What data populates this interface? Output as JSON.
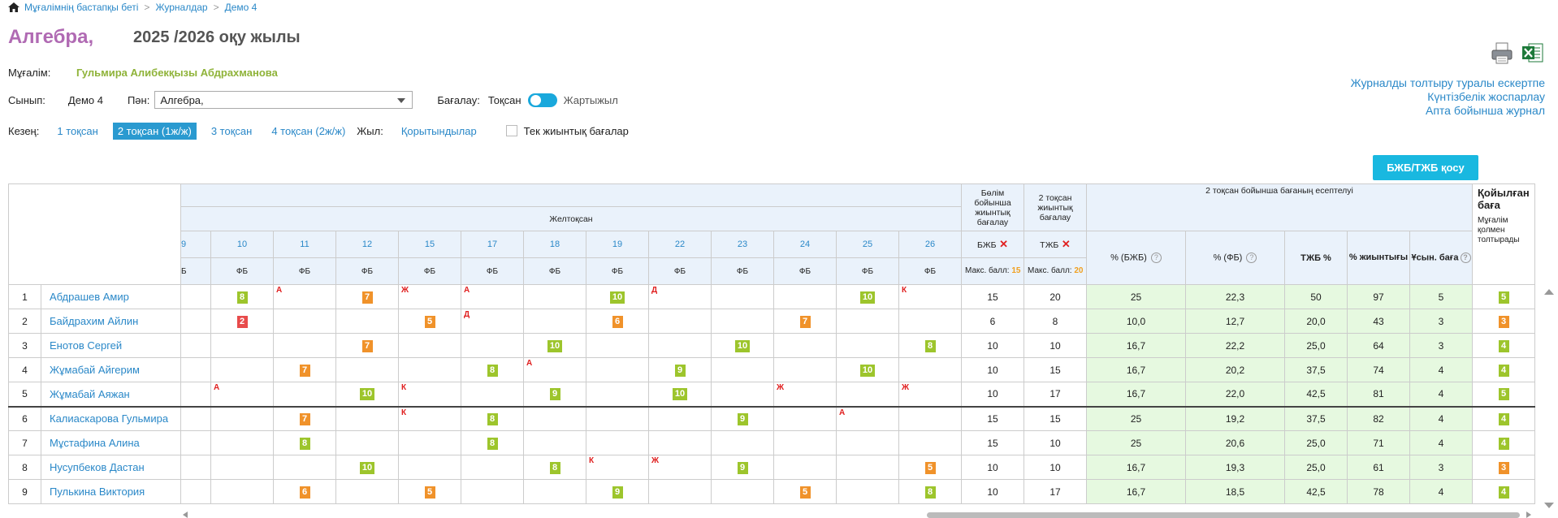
{
  "breadcrumb": [
    "Мұғалімнің бастапқы беті",
    "Журналдар",
    "Демо 4"
  ],
  "subject_title": "Алгебра,",
  "school_year": "2025 /2026 оқу жылы",
  "teacher_label": "Мұғалім:",
  "teacher_name": "Гульмира Алибекқызы Абдрахманова",
  "class_label": "Сынып:",
  "class_value": "Демо 4",
  "subject_label": "Пән:",
  "subject_value": "Алгебра,",
  "grading_label": "Бағалау:",
  "grading_left": "Тоқсан",
  "grading_right": "Жартыжыл",
  "period_label": "Кезең:",
  "periods": [
    "1 тоқсан",
    "2 тоқсан (1ж/ж)",
    "3 тоқсан",
    "4 тоқсан (2ж/ж)"
  ],
  "year_label": "Жыл:",
  "year_link": "Қорытындылар",
  "only_summative": "Тек жиынтық бағалар",
  "right_links": [
    "Журналды толтыру туралы ескертпе",
    "Күнтізбелік жоспарлау",
    "Апта бойынша журнал"
  ],
  "add_button": "БЖБ/ТЖБ қосу",
  "table": {
    "month": "Желтоқсан",
    "col_bjb_header": "Бөлім бойынша жиынтық бағалау",
    "col_tjb_header": "2 тоқсан жиынтық бағалау",
    "calc_header": "2 тоқсан бойынша бағаның есептелуі",
    "final_header": "Қойылған баға",
    "final_sub": "Мұғалім қолмен толтырады",
    "dates": [
      "9",
      "10",
      "11",
      "12",
      "15",
      "17",
      "18",
      "19",
      "22",
      "23",
      "24",
      "25",
      "26"
    ],
    "types": [
      "Б",
      "ФБ",
      "ФБ",
      "ФБ",
      "ФБ",
      "ФБ",
      "ФБ",
      "ФБ",
      "ФБ",
      "ФБ",
      "ФБ",
      "ФБ",
      "ФБ"
    ],
    "bjb": "БЖБ",
    "tjb": "ТЖБ",
    "max_label": "Макс. балл:",
    "bjb_max": "15",
    "tjb_max": "20",
    "h_pct_bjb": "% (БЖБ)",
    "h_pct_fb": "% (ФБ)",
    "h_tjb_pct": "ТЖБ %",
    "h_total": "% жиынтығы",
    "h_suggested": "Ұсын. баға",
    "rows": [
      {
        "n": "1",
        "name": "Абдрашев Амир",
        "cells": [
          [],
          [
            8,
            "y"
          ],
          [
            null,
            null,
            "А"
          ],
          [
            7,
            "o"
          ],
          [
            null,
            null,
            "Ж"
          ],
          [
            null,
            null,
            "А"
          ],
          [],
          [
            10,
            "y"
          ],
          [
            null,
            null,
            "Д"
          ],
          [],
          [],
          [
            10,
            "y"
          ],
          [
            null,
            null,
            "К"
          ]
        ],
        "bjb": "15",
        "tjb": "20",
        "p1": "25",
        "p2": "22,3",
        "p3": "50",
        "p4": "97",
        "p5": "5",
        "final": [
          "5",
          "y"
        ]
      },
      {
        "n": "2",
        "name": "Байдрахим Айлин",
        "cells": [
          [],
          [
            2,
            "r"
          ],
          [],
          [],
          [
            5,
            "o"
          ],
          [
            null,
            null,
            "Д"
          ],
          [],
          [
            6,
            "o"
          ],
          [],
          [],
          [
            7,
            "o"
          ],
          [],
          []
        ],
        "bjb": "6",
        "tjb": "8",
        "p1": "10,0",
        "p2": "12,7",
        "p3": "20,0",
        "p4": "43",
        "p5": "3",
        "final": [
          "3",
          "o"
        ]
      },
      {
        "n": "3",
        "name": "Енотов Сергей",
        "cells": [
          [],
          [],
          [],
          [
            7,
            "o"
          ],
          [],
          [],
          [
            10,
            "y"
          ],
          [],
          [],
          [
            10,
            "y"
          ],
          [],
          [],
          [
            8,
            "y"
          ]
        ],
        "bjb": "10",
        "tjb": "10",
        "p1": "16,7",
        "p2": "22,2",
        "p3": "25,0",
        "p4": "64",
        "p5": "3",
        "final": [
          "4",
          "y"
        ]
      },
      {
        "n": "4",
        "name": "Жұмабай Айгерим",
        "cells": [
          [],
          [],
          [
            7,
            "o"
          ],
          [],
          [],
          [
            8,
            "y"
          ],
          [
            null,
            null,
            "А"
          ],
          [],
          [
            9,
            "y"
          ],
          [],
          [],
          [
            10,
            "y"
          ],
          []
        ],
        "bjb": "10",
        "tjb": "15",
        "p1": "16,7",
        "p2": "20,2",
        "p3": "37,5",
        "p4": "74",
        "p5": "4",
        "final": [
          "4",
          "y"
        ]
      },
      {
        "n": "5",
        "name": "Жұмабай Аяжан",
        "cells": [
          [],
          [
            null,
            null,
            "А"
          ],
          [],
          [
            10,
            "y"
          ],
          [
            null,
            null,
            "К"
          ],
          [],
          [
            9,
            "y"
          ],
          [],
          [
            10,
            "y"
          ],
          [],
          [
            null,
            null,
            "Ж"
          ],
          [],
          [
            null,
            null,
            "Ж"
          ]
        ],
        "bjb": "10",
        "tjb": "17",
        "p1": "16,7",
        "p2": "22,0",
        "p3": "42,5",
        "p4": "81",
        "p5": "4",
        "final": [
          "5",
          "y"
        ]
      },
      {
        "n": "6",
        "name": "Калиаскарова Гульмира",
        "cells": [
          [],
          [],
          [
            7,
            "o"
          ],
          [],
          [
            null,
            null,
            "К"
          ],
          [
            8,
            "y"
          ],
          [],
          [],
          [],
          [
            9,
            "y"
          ],
          [],
          [
            null,
            null,
            "А"
          ],
          []
        ],
        "bjb": "15",
        "tjb": "15",
        "p1": "25",
        "p2": "19,2",
        "p3": "37,5",
        "p4": "82",
        "p5": "4",
        "final": [
          "4",
          "y"
        ]
      },
      {
        "n": "7",
        "name": "Мұстафина Алина",
        "cells": [
          [],
          [],
          [
            8,
            "y"
          ],
          [],
          [],
          [
            8,
            "y"
          ],
          [],
          [],
          [],
          [],
          [],
          [],
          []
        ],
        "bjb": "15",
        "tjb": "10",
        "p1": "25",
        "p2": "20,6",
        "p3": "25,0",
        "p4": "71",
        "p5": "4",
        "final": [
          "4",
          "y"
        ]
      },
      {
        "n": "8",
        "name": "Нусупбеков Дастан",
        "cells": [
          [],
          [],
          [],
          [
            10,
            "y"
          ],
          [],
          [],
          [
            8,
            "y"
          ],
          [
            null,
            null,
            "К"
          ],
          [
            null,
            null,
            "Ж"
          ],
          [
            9,
            "y"
          ],
          [],
          [],
          [
            5,
            "o"
          ]
        ],
        "bjb": "10",
        "tjb": "10",
        "p1": "16,7",
        "p2": "19,3",
        "p3": "25,0",
        "p4": "61",
        "p5": "3",
        "final": [
          "3",
          "o"
        ]
      },
      {
        "n": "9",
        "name": "Пулькина Виктория",
        "cells": [
          [],
          [],
          [
            6,
            "o"
          ],
          [],
          [
            5,
            "o"
          ],
          [],
          [],
          [
            9,
            "y"
          ],
          [],
          [],
          [
            5,
            "o"
          ],
          [],
          [
            8,
            "y"
          ]
        ],
        "bjb": "10",
        "tjb": "17",
        "p1": "16,7",
        "p2": "18,5",
        "p3": "42,5",
        "p4": "78",
        "p5": "4",
        "final": [
          "4",
          "y"
        ]
      }
    ]
  },
  "colors": {
    "accent": "#2a88c8",
    "title": "#b06ab3",
    "teacher": "#8fb339",
    "button": "#19b8e0",
    "grade_yellow": "#9dc52c",
    "grade_orange": "#f0922a",
    "grade_red": "#e84b4b"
  }
}
